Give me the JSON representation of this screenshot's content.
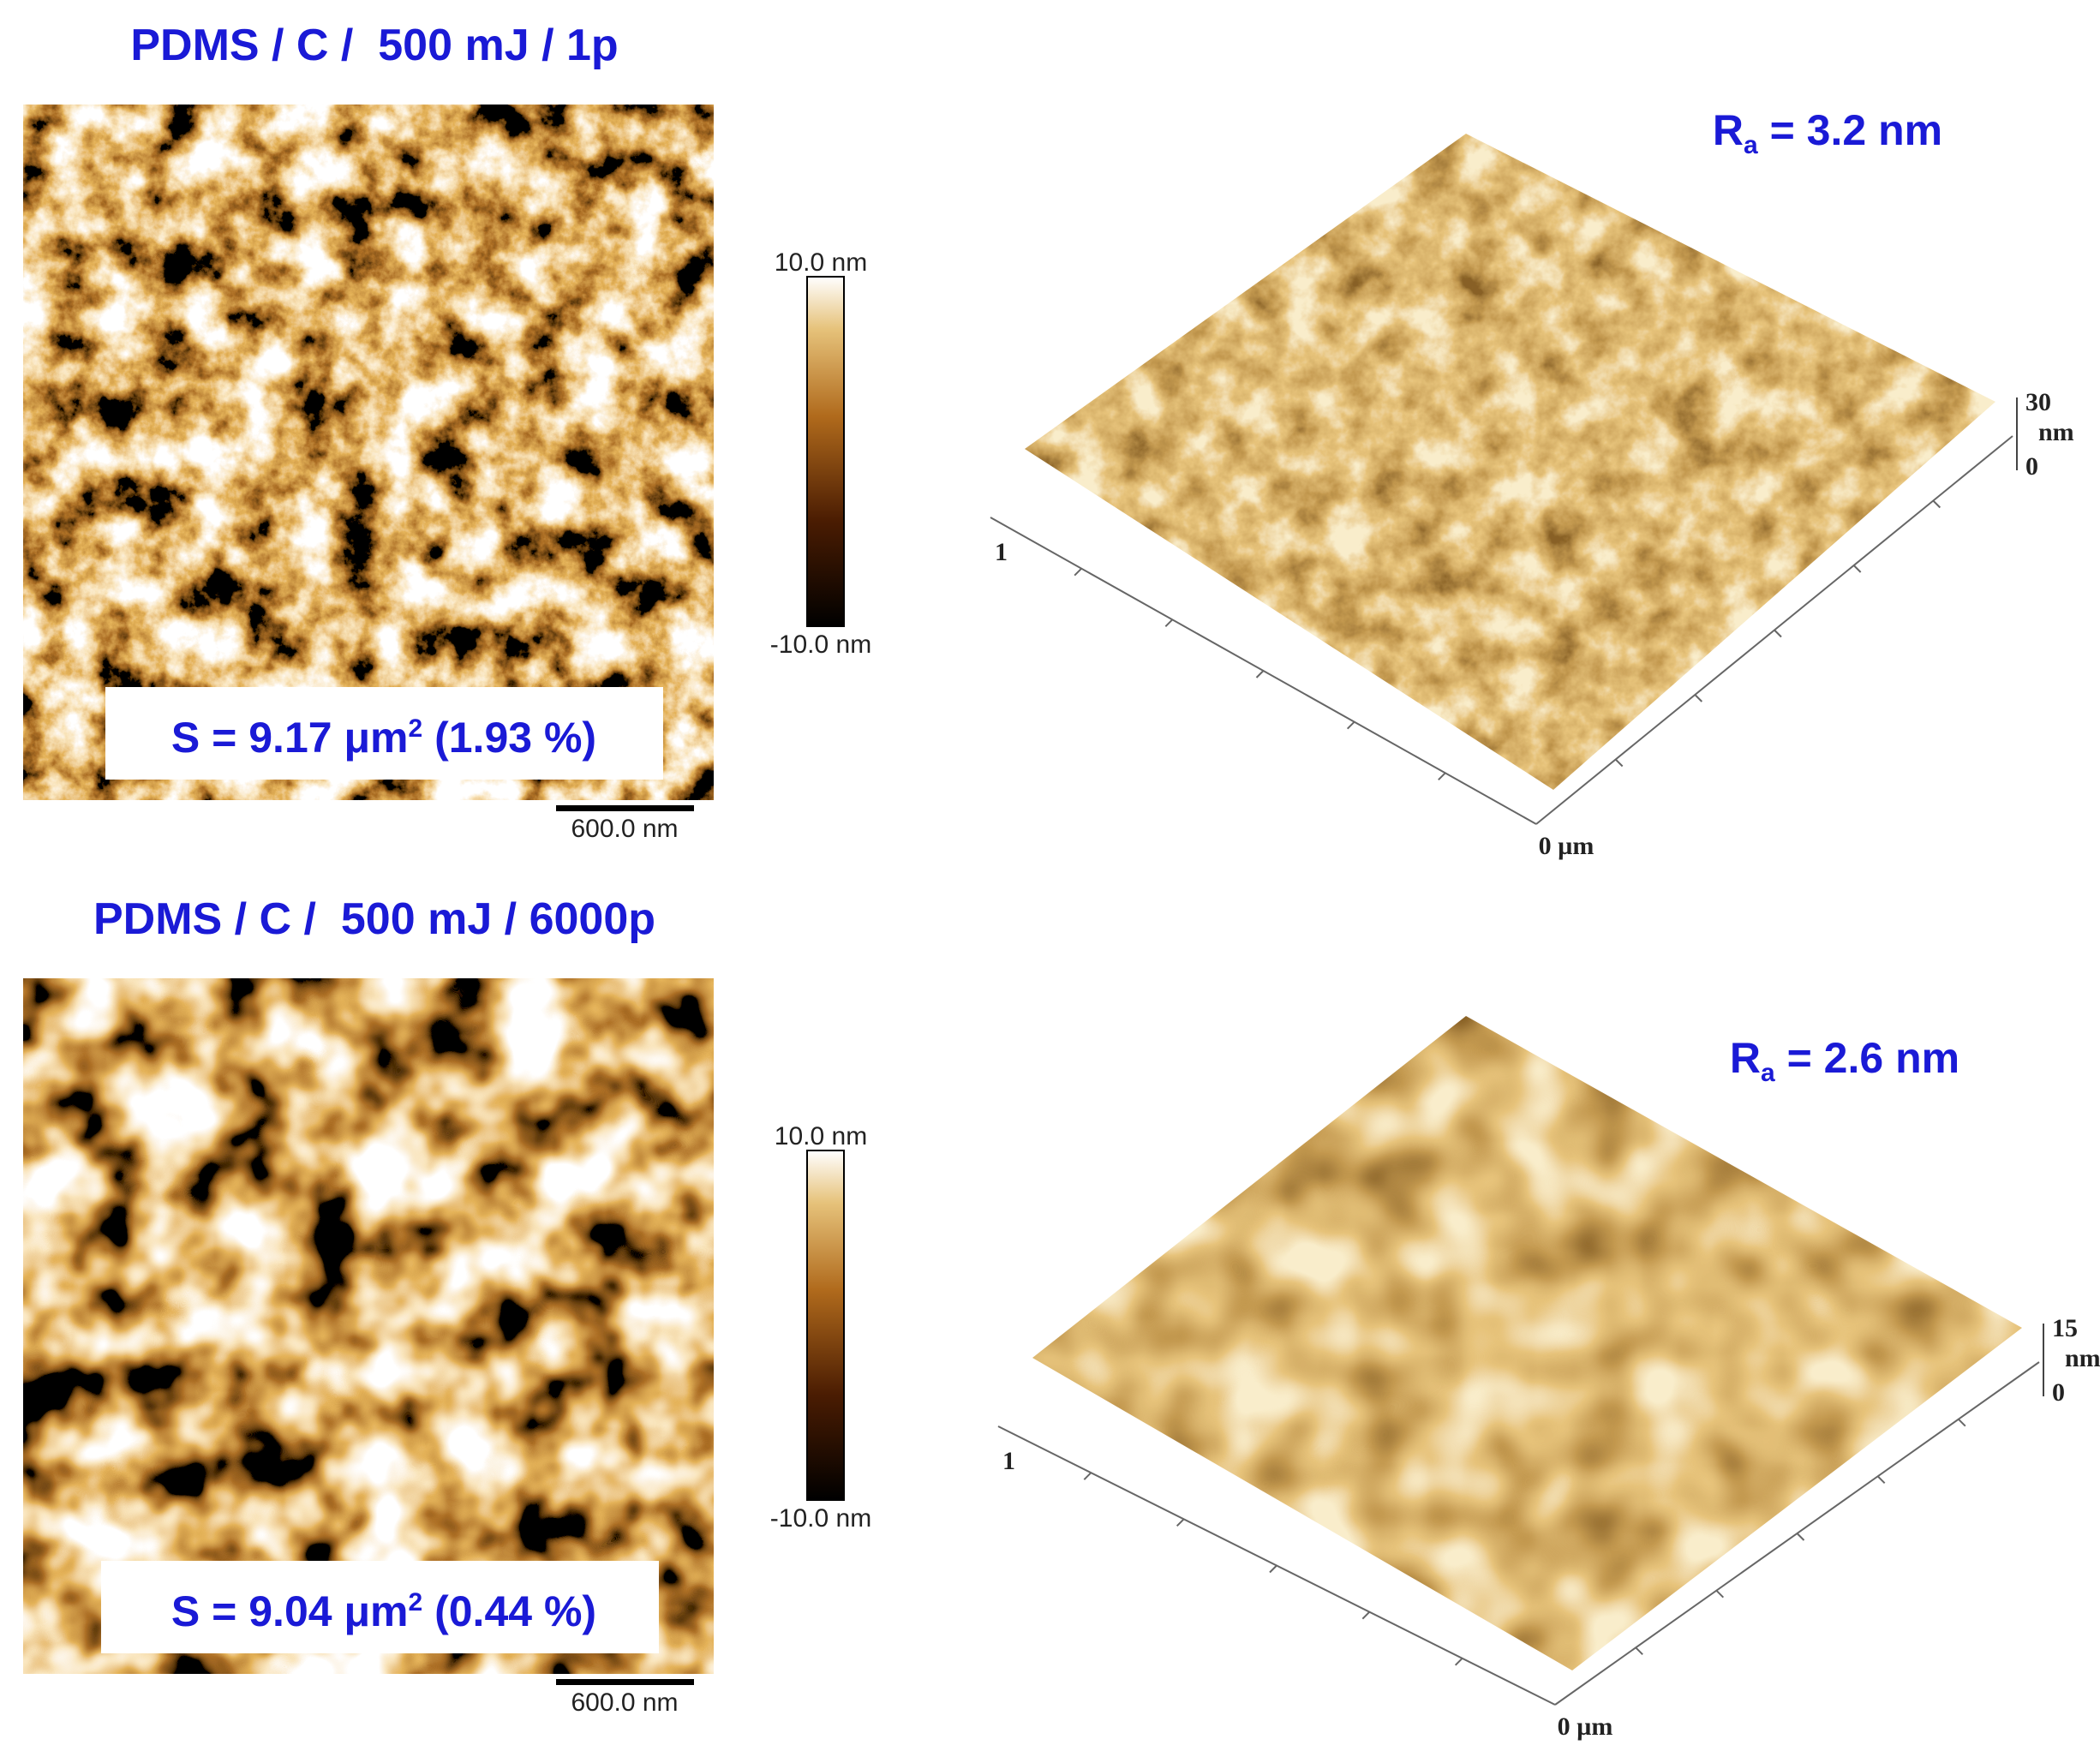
{
  "panels": [
    {
      "title": "PDMS / C /  500 mJ / 1p",
      "colorbar": {
        "max": "10.0 nm",
        "min": "-10.0 nm"
      },
      "scale_bar": "600.0 nm",
      "surface_area": {
        "text": "S = 9.17 μm",
        "sup": "2",
        "suffix": " (1.93 %)"
      },
      "roughness": {
        "symbol": "R",
        "sub": "a",
        "text": " = 3.2 nm"
      },
      "axis_3d": {
        "z_max": "30",
        "z_unit": "nm",
        "z_min": "0",
        "y_end": "1",
        "origin": "0 µm"
      }
    },
    {
      "title": "PDMS / C /  500 mJ / 6000p",
      "colorbar": {
        "max": "10.0 nm",
        "min": "-10.0 nm"
      },
      "scale_bar": "600.0 nm",
      "surface_area": {
        "text": "S = 9.04 μm",
        "sup": "2",
        "suffix": " (0.44 %)"
      },
      "roughness": {
        "symbol": "R",
        "sub": "a",
        "text": " = 2.6 nm"
      },
      "axis_3d": {
        "z_max": "15",
        "z_unit": "nm",
        "z_min": "0",
        "y_end": "1",
        "origin": "0 µm"
      }
    }
  ]
}
